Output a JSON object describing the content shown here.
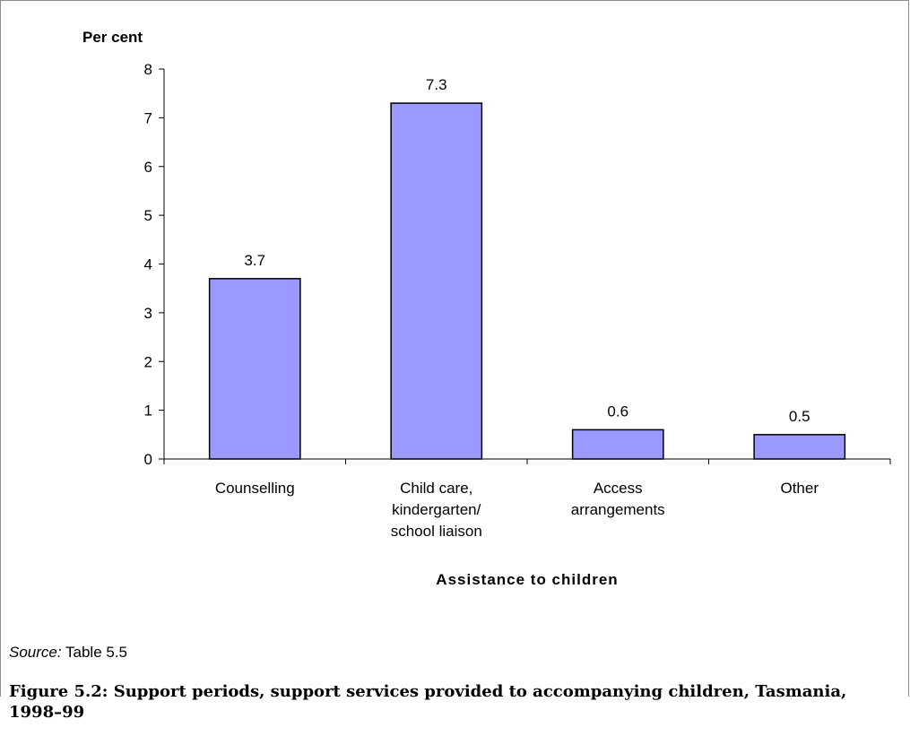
{
  "chart_data": {
    "type": "bar",
    "ylabel": "Per cent",
    "xlabel": "Assistance to children",
    "categories": [
      [
        "Counselling"
      ],
      [
        "Child care,",
        "kindergarten/",
        "school liaison"
      ],
      [
        "Access",
        "arrangements"
      ],
      [
        "Other"
      ]
    ],
    "values": [
      3.7,
      7.3,
      0.6,
      0.5
    ],
    "data_labels": [
      "3.7",
      "7.3",
      "0.6",
      "0.5"
    ],
    "ylim": [
      0,
      8
    ],
    "yticks": [
      0,
      1,
      2,
      3,
      4,
      5,
      6,
      7,
      8
    ],
    "bar_color": "#9999ff",
    "bar_stroke": "#000000",
    "grid": false,
    "legend": "none"
  },
  "source": {
    "label": "Source:",
    "text": " Table 5.5"
  },
  "caption": "Figure 5.2: Support periods, support services provided to accompanying children, Tasmania, 1998–99"
}
